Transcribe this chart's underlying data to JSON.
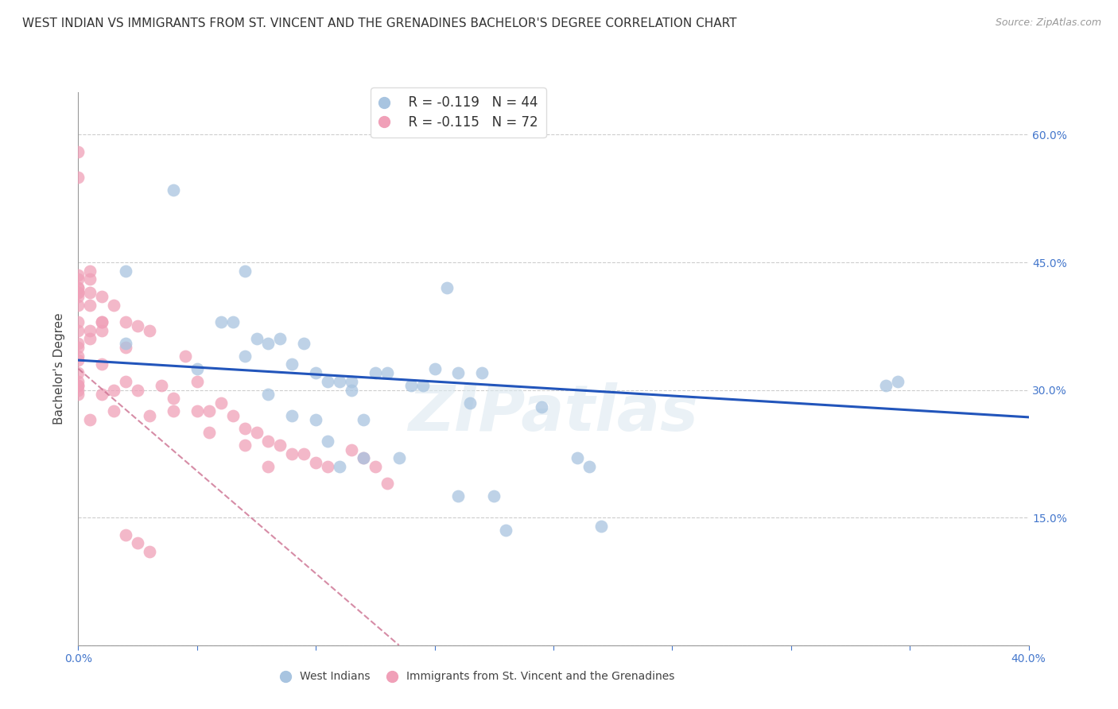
{
  "title": "WEST INDIAN VS IMMIGRANTS FROM ST. VINCENT AND THE GRENADINES BACHELOR'S DEGREE CORRELATION CHART",
  "source": "Source: ZipAtlas.com",
  "ylabel": "Bachelor's Degree",
  "xlim": [
    0.0,
    0.4
  ],
  "ylim": [
    0.0,
    0.65
  ],
  "yticks": [
    0.0,
    0.15,
    0.3,
    0.45,
    0.6
  ],
  "ytick_labels": [
    "",
    "15.0%",
    "30.0%",
    "45.0%",
    "60.0%"
  ],
  "xticks": [
    0.0,
    0.05,
    0.1,
    0.15,
    0.2,
    0.25,
    0.3,
    0.35,
    0.4
  ],
  "xtick_labels": [
    "0.0%",
    "",
    "",
    "",
    "",
    "",
    "",
    "",
    "40.0%"
  ],
  "grid_color": "#c8c8c8",
  "background_color": "#ffffff",
  "legend_R1": "R = -0.119",
  "legend_N1": "N = 44",
  "legend_R2": "R = -0.115",
  "legend_N2": "N = 72",
  "color_blue": "#a8c4e0",
  "color_pink": "#f0a0b8",
  "line_blue": "#2255bb",
  "line_pink": "#cc7090",
  "watermark": "ZIPatlas",
  "series1_label": "West Indians",
  "series2_label": "Immigrants from St. Vincent and the Grenadines",
  "blue_x": [
    0.02,
    0.02,
    0.04,
    0.05,
    0.06,
    0.065,
    0.07,
    0.07,
    0.075,
    0.08,
    0.08,
    0.085,
    0.09,
    0.09,
    0.095,
    0.1,
    0.1,
    0.105,
    0.105,
    0.11,
    0.11,
    0.115,
    0.115,
    0.12,
    0.12,
    0.125,
    0.13,
    0.135,
    0.14,
    0.145,
    0.15,
    0.155,
    0.16,
    0.16,
    0.165,
    0.17,
    0.175,
    0.18,
    0.195,
    0.21,
    0.215,
    0.22,
    0.34,
    0.345
  ],
  "blue_y": [
    0.44,
    0.355,
    0.535,
    0.325,
    0.38,
    0.38,
    0.44,
    0.34,
    0.36,
    0.355,
    0.295,
    0.36,
    0.33,
    0.27,
    0.355,
    0.32,
    0.265,
    0.31,
    0.24,
    0.31,
    0.21,
    0.31,
    0.3,
    0.265,
    0.22,
    0.32,
    0.32,
    0.22,
    0.305,
    0.305,
    0.325,
    0.42,
    0.32,
    0.175,
    0.285,
    0.32,
    0.175,
    0.135,
    0.28,
    0.22,
    0.21,
    0.14,
    0.305,
    0.31
  ],
  "pink_x": [
    0.0,
    0.0,
    0.0,
    0.0,
    0.0,
    0.0,
    0.0,
    0.0,
    0.0,
    0.0,
    0.0,
    0.0,
    0.0,
    0.0,
    0.0,
    0.0,
    0.0,
    0.0,
    0.0,
    0.0,
    0.0,
    0.0,
    0.005,
    0.005,
    0.005,
    0.005,
    0.005,
    0.005,
    0.005,
    0.01,
    0.01,
    0.01,
    0.01,
    0.01,
    0.01,
    0.015,
    0.015,
    0.015,
    0.02,
    0.02,
    0.02,
    0.025,
    0.025,
    0.03,
    0.03,
    0.035,
    0.04,
    0.04,
    0.045,
    0.05,
    0.05,
    0.055,
    0.055,
    0.06,
    0.065,
    0.07,
    0.07,
    0.075,
    0.08,
    0.08,
    0.085,
    0.09,
    0.095,
    0.1,
    0.105,
    0.115,
    0.12,
    0.125,
    0.13,
    0.02,
    0.025,
    0.03
  ],
  "pink_y": [
    0.58,
    0.55,
    0.435,
    0.43,
    0.42,
    0.42,
    0.415,
    0.415,
    0.41,
    0.4,
    0.38,
    0.37,
    0.355,
    0.35,
    0.34,
    0.335,
    0.32,
    0.31,
    0.305,
    0.305,
    0.3,
    0.295,
    0.44,
    0.43,
    0.415,
    0.4,
    0.37,
    0.36,
    0.265,
    0.41,
    0.38,
    0.38,
    0.37,
    0.33,
    0.295,
    0.4,
    0.3,
    0.275,
    0.38,
    0.35,
    0.31,
    0.375,
    0.3,
    0.37,
    0.27,
    0.305,
    0.29,
    0.275,
    0.34,
    0.31,
    0.275,
    0.275,
    0.25,
    0.285,
    0.27,
    0.255,
    0.235,
    0.25,
    0.24,
    0.21,
    0.235,
    0.225,
    0.225,
    0.215,
    0.21,
    0.23,
    0.22,
    0.21,
    0.19,
    0.13,
    0.12,
    0.11
  ],
  "blue_line_x": [
    0.0,
    0.4
  ],
  "blue_line_y": [
    0.335,
    0.268
  ],
  "pink_line_x": [
    0.0,
    0.135
  ],
  "pink_line_y": [
    0.325,
    0.0
  ],
  "title_fontsize": 11,
  "axis_color": "#4477cc",
  "tick_color": "#4477cc",
  "legend_text_color": "#333333",
  "legend_accent_color": "#cc3355"
}
